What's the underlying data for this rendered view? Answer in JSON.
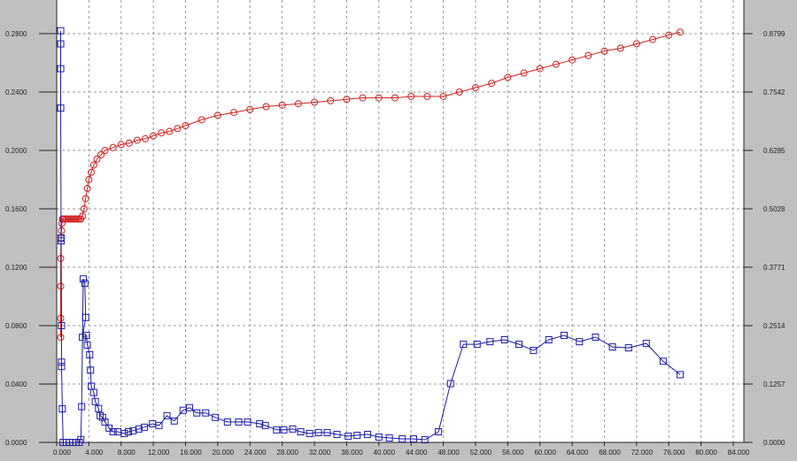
{
  "chart_data": {
    "type": "line",
    "title": "",
    "xlabel": "",
    "ylabel": "",
    "y2label": "",
    "xlim": [
      0,
      84
    ],
    "ylim": [
      0,
      0.28
    ],
    "y2lim": [
      0,
      0.8799
    ],
    "grid": true,
    "x_ticks": [
      "0.000",
      "4.000",
      "8.000",
      "12.000",
      "16.000",
      "20.000",
      "24.000",
      "28.000",
      "32.000",
      "36.000",
      "40.000",
      "44.000",
      "48.000",
      "52.000",
      "56.000",
      "60.000",
      "64.000",
      "68.000",
      "72.000",
      "76.000",
      "80.000",
      "84.000"
    ],
    "y_ticks": [
      "0.0000",
      "0.0400",
      "0.0800",
      "0.1200",
      "0.1600",
      "0.2000",
      "0.2400",
      "0.2800"
    ],
    "y2_ticks": [
      "0.0000",
      "0.1257",
      "0.2514",
      "0.3771",
      "0.5028",
      "0.6285",
      "0.7542",
      "0.8799"
    ],
    "colors": {
      "background": "#c0c0c0",
      "plot": "#ffffff",
      "red_series": "#d02020",
      "blue_series": "#1a1aa8"
    },
    "series": [
      {
        "marker": "circle",
        "color": "#d02020",
        "x": [
          0.5,
          0.5,
          0.5,
          0.5,
          0.55,
          0.6,
          0.65,
          0.7,
          0.8,
          1.0,
          1.2,
          1.4,
          1.6,
          1.8,
          2.0,
          2.2,
          2.4,
          2.6,
          2.8,
          3.0,
          3.2,
          3.4,
          3.6,
          3.8,
          4.0,
          4.3,
          4.6,
          5.0,
          5.5,
          6,
          7,
          8,
          9,
          10,
          11,
          12,
          13,
          14,
          15,
          16,
          18,
          20,
          22,
          24,
          26,
          28,
          30,
          32,
          34,
          36,
          38,
          40,
          42,
          44,
          46,
          48,
          50,
          52,
          54,
          56,
          58,
          60,
          62,
          64,
          66,
          68,
          70,
          72,
          74,
          76,
          77.4
        ],
        "y": [
          0.072,
          0.085,
          0.107,
          0.126,
          0.14,
          0.145,
          0.15,
          0.153,
          0.153,
          0.153,
          0.153,
          0.153,
          0.153,
          0.153,
          0.153,
          0.153,
          0.153,
          0.153,
          0.153,
          0.153,
          0.155,
          0.16,
          0.167,
          0.174,
          0.18,
          0.185,
          0.19,
          0.194,
          0.197,
          0.2,
          0.202,
          0.204,
          0.205,
          0.207,
          0.208,
          0.21,
          0.212,
          0.213,
          0.215,
          0.217,
          0.221,
          0.224,
          0.226,
          0.228,
          0.23,
          0.231,
          0.232,
          0.233,
          0.234,
          0.235,
          0.236,
          0.236,
          0.236,
          0.237,
          0.237,
          0.237,
          0.24,
          0.243,
          0.246,
          0.25,
          0.253,
          0.256,
          0.259,
          0.262,
          0.265,
          0.268,
          0.27,
          0.273,
          0.276,
          0.279,
          0.281
        ]
      },
      {
        "marker": "square",
        "color": "#1a1aa8",
        "x": [
          0.5,
          0.5,
          0.5,
          0.5,
          0.55,
          0.55,
          0.6,
          0.6,
          0.6,
          0.7,
          0.8,
          1.2,
          1.6,
          2.0,
          2.4,
          2.8,
          3.0,
          3.1,
          3.3,
          3.5,
          3.6,
          3.2,
          3.7,
          3.8,
          4.1,
          4.2,
          4.3,
          4.6,
          4.8,
          5.2,
          5.4,
          5.7,
          6.0,
          6.5,
          7.0,
          7.6,
          8.4,
          8.9,
          9.5,
          10.2,
          10.9,
          11.9,
          12.7,
          13.7,
          14.6,
          15.7,
          16.5,
          17.4,
          18.5,
          19.7,
          21.2,
          22.6,
          23.7,
          25.2,
          25.9,
          27.3,
          28.2,
          29.3,
          30.3,
          31.4,
          32.5,
          33.6,
          34.8,
          36.2,
          37.3,
          38.6,
          40.0,
          41.3,
          42.9,
          44.3,
          45.7,
          47.4,
          48.9,
          50.5,
          52.2,
          53.8,
          55.6,
          57.4,
          59.2,
          61.1,
          63.0,
          64.9,
          66.9,
          69.0,
          71.0,
          73.2,
          75.3,
          77.4
        ],
        "y": [
          0.282,
          0.273,
          0.256,
          0.229,
          0.14,
          0.138,
          0.08,
          0.055,
          0.052,
          0.023,
          0,
          0,
          0,
          0,
          0,
          0,
          0.002,
          0.0245,
          0.112,
          0.109,
          0.0856,
          0.072,
          0.0733,
          0.0666,
          0.06,
          0.0495,
          0.0385,
          0.0342,
          0.028,
          0.0232,
          0.0183,
          0.0171,
          0.014,
          0.0098,
          0.0073,
          0.0073,
          0.0061,
          0.0073,
          0.008,
          0.0092,
          0.0104,
          0.0128,
          0.0116,
          0.0183,
          0.0147,
          0.022,
          0.0238,
          0.0202,
          0.0202,
          0.0171,
          0.014,
          0.014,
          0.014,
          0.0128,
          0.0116,
          0.0086,
          0.0086,
          0.0092,
          0.0073,
          0.0061,
          0.0067,
          0.0067,
          0.0055,
          0.0043,
          0.0049,
          0.0055,
          0.0037,
          0.0031,
          0.0024,
          0.0024,
          0.0018,
          0.0073,
          0.0403,
          0.0672,
          0.0672,
          0.069,
          0.0703,
          0.0672,
          0.063,
          0.0703,
          0.0733,
          0.069,
          0.0721,
          0.0654,
          0.0648,
          0.0678,
          0.0556,
          0.0464
        ]
      }
    ]
  }
}
